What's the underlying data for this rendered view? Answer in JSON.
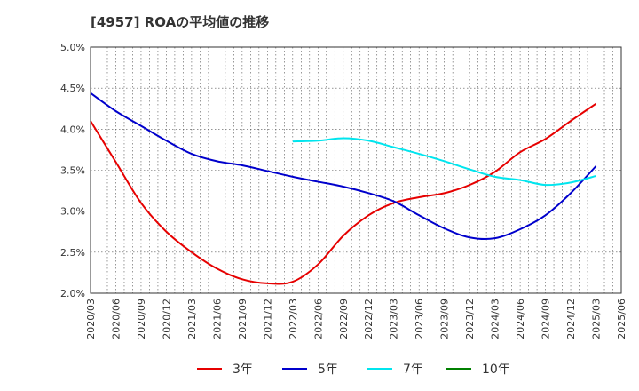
{
  "chart_data": {
    "type": "line",
    "title": "[4957]  ROAの平均値の推移",
    "xlabel": "",
    "ylabel": "",
    "ylim": [
      2.0,
      5.0
    ],
    "y_ticks": [
      "2.0%",
      "2.5%",
      "3.0%",
      "3.5%",
      "4.0%",
      "4.5%",
      "5.0%"
    ],
    "x_ticks": [
      "2020/03",
      "2020/06",
      "2020/09",
      "2020/12",
      "2021/03",
      "2021/06",
      "2021/09",
      "2021/12",
      "2022/03",
      "2022/06",
      "2022/09",
      "2022/12",
      "2023/03",
      "2023/06",
      "2023/09",
      "2023/12",
      "2024/03",
      "2024/06",
      "2024/09",
      "2024/12",
      "2025/03",
      "2025/06"
    ],
    "grid": true,
    "legend_position": "bottom",
    "series": [
      {
        "name": "3年",
        "color": "#e60000",
        "values": [
          4.1,
          3.6,
          3.1,
          2.75,
          2.5,
          2.3,
          2.17,
          2.12,
          2.14,
          2.35,
          2.7,
          2.95,
          3.1,
          3.17,
          3.22,
          3.32,
          3.48,
          3.72,
          3.88,
          4.1,
          4.31,
          null
        ]
      },
      {
        "name": "5年",
        "color": "#0000cc",
        "values": [
          4.44,
          4.22,
          4.04,
          3.86,
          3.7,
          3.61,
          3.56,
          3.49,
          3.42,
          3.36,
          3.3,
          3.22,
          3.12,
          2.95,
          2.79,
          2.68,
          2.67,
          2.78,
          2.95,
          3.22,
          3.55,
          null
        ]
      },
      {
        "name": "7年",
        "color": "#00e5ee",
        "values": [
          null,
          null,
          null,
          null,
          null,
          null,
          null,
          null,
          3.85,
          3.86,
          3.89,
          3.86,
          3.78,
          3.7,
          3.61,
          3.51,
          3.42,
          3.38,
          3.32,
          3.35,
          3.43,
          null
        ]
      },
      {
        "name": "10年",
        "color": "#008000",
        "values": []
      }
    ]
  }
}
